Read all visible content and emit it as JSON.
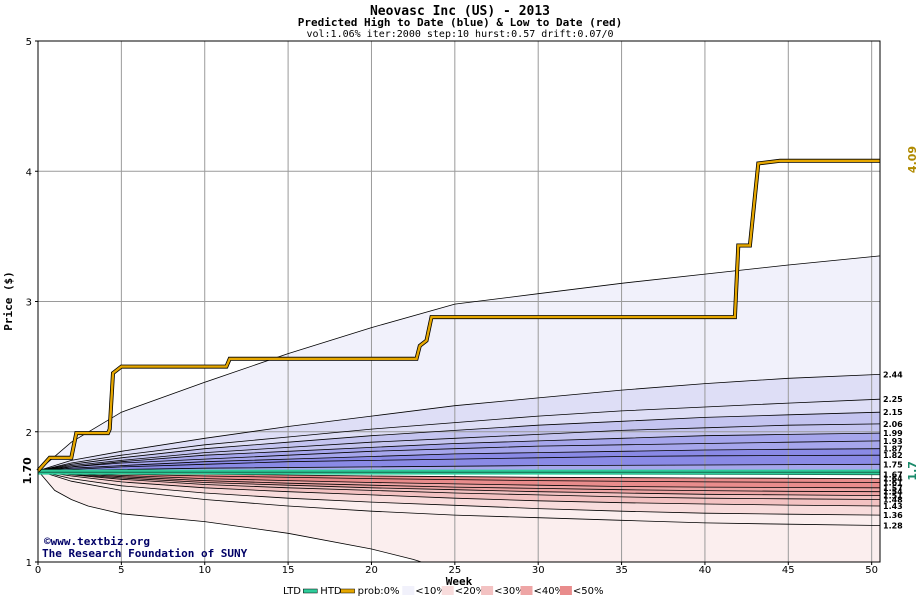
{
  "chart_data": {
    "type": "area",
    "title": "Neovasc Inc (US) - 2013",
    "subtitle": "Predicted High to Date (blue) &  Low to Date (red)",
    "params": "vol:1.06% iter:2000 step:10 hurst:0.57 drift:0.07/0",
    "xlabel": "Week",
    "ylabel": "Price ($)",
    "xlim": [
      0,
      50.5
    ],
    "ylim": [
      1,
      5
    ],
    "x_ticks": [
      "0",
      "5",
      "10",
      "15",
      "20",
      "25",
      "30",
      "35",
      "40",
      "45",
      "50"
    ],
    "y_ticks": [
      "1",
      "2",
      "3",
      "4",
      "5"
    ],
    "start_value": 1.7,
    "start_label": "1.70",
    "end_close_label": "1.7",
    "end_high_label": "4.09",
    "grid": true,
    "colors": {
      "fill_10": "#f1f1fb",
      "fill_20": "#dedef6",
      "fill_30": "#c4c4f0",
      "fill_40": "#a6a6ec",
      "fill_50": "#8a8ae6",
      "red_10": "#fbeeee",
      "red_20": "#f8dcdc",
      "red_30": "#f3c2c2",
      "red_40": "#eea5a5",
      "red_50": "#e98c8c",
      "htd_line": "#e6a700",
      "ltd_line": "#2ecc9a",
      "end_high_color": "#b08a00",
      "end_close_color": "#1a8a6a"
    },
    "high_quantiles": [
      {
        "label": "3.35",
        "show_label": false,
        "points": [
          [
            0,
            1.7
          ],
          [
            2,
            1.92
          ],
          [
            5,
            2.15
          ],
          [
            10,
            2.38
          ],
          [
            15,
            2.6
          ],
          [
            20,
            2.8
          ],
          [
            25,
            2.98
          ],
          [
            30,
            3.06
          ],
          [
            35,
            3.14
          ],
          [
            40,
            3.21
          ],
          [
            45,
            3.28
          ],
          [
            50.5,
            3.35
          ]
        ]
      },
      {
        "label": "2.44",
        "show_label": true,
        "points": [
          [
            0,
            1.7
          ],
          [
            2,
            1.78
          ],
          [
            5,
            1.85
          ],
          [
            10,
            1.95
          ],
          [
            15,
            2.04
          ],
          [
            20,
            2.12
          ],
          [
            25,
            2.2
          ],
          [
            30,
            2.26
          ],
          [
            35,
            2.32
          ],
          [
            40,
            2.37
          ],
          [
            45,
            2.41
          ],
          [
            50.5,
            2.44
          ]
        ]
      },
      {
        "label": "2.25",
        "show_label": true,
        "points": [
          [
            0,
            1.7
          ],
          [
            2,
            1.76
          ],
          [
            5,
            1.82
          ],
          [
            10,
            1.9
          ],
          [
            15,
            1.96
          ],
          [
            20,
            2.02
          ],
          [
            25,
            2.07
          ],
          [
            30,
            2.12
          ],
          [
            35,
            2.16
          ],
          [
            40,
            2.19
          ],
          [
            45,
            2.22
          ],
          [
            50.5,
            2.25
          ]
        ]
      },
      {
        "label": "2.15",
        "show_label": true,
        "points": [
          [
            0,
            1.7
          ],
          [
            2,
            1.75
          ],
          [
            5,
            1.8
          ],
          [
            10,
            1.87
          ],
          [
            15,
            1.92
          ],
          [
            20,
            1.97
          ],
          [
            25,
            2.01
          ],
          [
            30,
            2.05
          ],
          [
            35,
            2.08
          ],
          [
            40,
            2.11
          ],
          [
            45,
            2.13
          ],
          [
            50.5,
            2.15
          ]
        ]
      },
      {
        "label": "2.06",
        "show_label": true,
        "points": [
          [
            0,
            1.7
          ],
          [
            2,
            1.74
          ],
          [
            5,
            1.78
          ],
          [
            10,
            1.84
          ],
          [
            15,
            1.88
          ],
          [
            20,
            1.92
          ],
          [
            25,
            1.95
          ],
          [
            30,
            1.98
          ],
          [
            35,
            2.01
          ],
          [
            40,
            2.03
          ],
          [
            45,
            2.05
          ],
          [
            50.5,
            2.06
          ]
        ]
      },
      {
        "label": "1.99",
        "show_label": true,
        "points": [
          [
            0,
            1.7
          ],
          [
            2,
            1.73
          ],
          [
            5,
            1.77
          ],
          [
            10,
            1.82
          ],
          [
            15,
            1.85
          ],
          [
            20,
            1.88
          ],
          [
            25,
            1.91
          ],
          [
            30,
            1.93
          ],
          [
            35,
            1.95
          ],
          [
            40,
            1.97
          ],
          [
            45,
            1.98
          ],
          [
            50.5,
            1.99
          ]
        ]
      },
      {
        "label": "1.93",
        "show_label": true,
        "points": [
          [
            0,
            1.7
          ],
          [
            2,
            1.73
          ],
          [
            5,
            1.76
          ],
          [
            10,
            1.79
          ],
          [
            15,
            1.82
          ],
          [
            20,
            1.85
          ],
          [
            25,
            1.87
          ],
          [
            30,
            1.89
          ],
          [
            35,
            1.9
          ],
          [
            40,
            1.91
          ],
          [
            45,
            1.92
          ],
          [
            50.5,
            1.93
          ]
        ]
      },
      {
        "label": "1.87",
        "show_label": true,
        "points": [
          [
            0,
            1.7
          ],
          [
            2,
            1.72
          ],
          [
            5,
            1.74
          ],
          [
            10,
            1.77
          ],
          [
            15,
            1.79
          ],
          [
            20,
            1.81
          ],
          [
            25,
            1.83
          ],
          [
            30,
            1.84
          ],
          [
            35,
            1.85
          ],
          [
            40,
            1.86
          ],
          [
            45,
            1.865
          ],
          [
            50.5,
            1.87
          ]
        ]
      },
      {
        "label": "1.82",
        "show_label": true,
        "points": [
          [
            0,
            1.7
          ],
          [
            2,
            1.71
          ],
          [
            5,
            1.73
          ],
          [
            10,
            1.75
          ],
          [
            15,
            1.77
          ],
          [
            20,
            1.78
          ],
          [
            25,
            1.79
          ],
          [
            30,
            1.8
          ],
          [
            35,
            1.81
          ],
          [
            40,
            1.815
          ],
          [
            45,
            1.818
          ],
          [
            50.5,
            1.82
          ]
        ]
      },
      {
        "label": "1.75",
        "show_label": true,
        "points": [
          [
            0,
            1.7
          ],
          [
            5,
            1.71
          ],
          [
            10,
            1.72
          ],
          [
            20,
            1.73
          ],
          [
            30,
            1.74
          ],
          [
            40,
            1.745
          ],
          [
            50.5,
            1.75
          ]
        ]
      },
      {
        "label": "1.67",
        "show_label": true,
        "points": [
          [
            0,
            1.7
          ],
          [
            10,
            1.69
          ],
          [
            20,
            1.68
          ],
          [
            30,
            1.675
          ],
          [
            50.5,
            1.67
          ]
        ]
      }
    ],
    "low_quantiles": [
      {
        "label": "1.64",
        "show_label": true,
        "points": [
          [
            0,
            1.7
          ],
          [
            5,
            1.685
          ],
          [
            10,
            1.675
          ],
          [
            20,
            1.66
          ],
          [
            30,
            1.65
          ],
          [
            40,
            1.645
          ],
          [
            50.5,
            1.64
          ]
        ]
      },
      {
        "label": "1.61",
        "show_label": true,
        "points": [
          [
            0,
            1.7
          ],
          [
            2,
            1.69
          ],
          [
            5,
            1.675
          ],
          [
            10,
            1.66
          ],
          [
            20,
            1.64
          ],
          [
            30,
            1.625
          ],
          [
            40,
            1.615
          ],
          [
            50.5,
            1.61
          ]
        ]
      },
      {
        "label": "1.57",
        "show_label": true,
        "points": [
          [
            0,
            1.7
          ],
          [
            2,
            1.685
          ],
          [
            5,
            1.665
          ],
          [
            10,
            1.64
          ],
          [
            15,
            1.625
          ],
          [
            20,
            1.61
          ],
          [
            25,
            1.6
          ],
          [
            30,
            1.59
          ],
          [
            35,
            1.58
          ],
          [
            40,
            1.575
          ],
          [
            45,
            1.572
          ],
          [
            50.5,
            1.57
          ]
        ]
      },
      {
        "label": "1.54",
        "show_label": true,
        "points": [
          [
            0,
            1.7
          ],
          [
            2,
            1.68
          ],
          [
            5,
            1.655
          ],
          [
            10,
            1.625
          ],
          [
            15,
            1.605
          ],
          [
            20,
            1.59
          ],
          [
            25,
            1.575
          ],
          [
            30,
            1.565
          ],
          [
            35,
            1.555
          ],
          [
            40,
            1.548
          ],
          [
            45,
            1.543
          ],
          [
            50.5,
            1.54
          ]
        ]
      },
      {
        "label": "1.51",
        "show_label": true,
        "points": [
          [
            0,
            1.7
          ],
          [
            2,
            1.675
          ],
          [
            5,
            1.645
          ],
          [
            10,
            1.61
          ],
          [
            15,
            1.59
          ],
          [
            20,
            1.57
          ],
          [
            25,
            1.555
          ],
          [
            30,
            1.54
          ],
          [
            35,
            1.53
          ],
          [
            40,
            1.52
          ],
          [
            45,
            1.515
          ],
          [
            50.5,
            1.51
          ]
        ]
      },
      {
        "label": "1.48",
        "show_label": true,
        "points": [
          [
            0,
            1.7
          ],
          [
            2,
            1.67
          ],
          [
            5,
            1.635
          ],
          [
            10,
            1.595
          ],
          [
            15,
            1.57
          ],
          [
            20,
            1.55
          ],
          [
            25,
            1.53
          ],
          [
            30,
            1.515
          ],
          [
            35,
            1.5
          ],
          [
            40,
            1.49
          ],
          [
            45,
            1.485
          ],
          [
            50.5,
            1.48
          ]
        ]
      },
      {
        "label": "1.43",
        "show_label": true,
        "points": [
          [
            0,
            1.7
          ],
          [
            2,
            1.66
          ],
          [
            5,
            1.615
          ],
          [
            10,
            1.57
          ],
          [
            15,
            1.54
          ],
          [
            20,
            1.515
          ],
          [
            25,
            1.49
          ],
          [
            30,
            1.47
          ],
          [
            35,
            1.455
          ],
          [
            40,
            1.445
          ],
          [
            45,
            1.437
          ],
          [
            50.5,
            1.43
          ]
        ]
      },
      {
        "label": "1.36",
        "show_label": true,
        "points": [
          [
            0,
            1.7
          ],
          [
            2,
            1.64
          ],
          [
            5,
            1.585
          ],
          [
            10,
            1.53
          ],
          [
            15,
            1.49
          ],
          [
            20,
            1.46
          ],
          [
            25,
            1.435
          ],
          [
            30,
            1.41
          ],
          [
            35,
            1.39
          ],
          [
            40,
            1.375
          ],
          [
            45,
            1.367
          ],
          [
            50.5,
            1.36
          ]
        ]
      },
      {
        "label": "1.28",
        "show_label": true,
        "points": [
          [
            0,
            1.7
          ],
          [
            2,
            1.62
          ],
          [
            5,
            1.55
          ],
          [
            10,
            1.48
          ],
          [
            15,
            1.43
          ],
          [
            20,
            1.39
          ],
          [
            25,
            1.36
          ],
          [
            30,
            1.34
          ],
          [
            35,
            1.32
          ],
          [
            40,
            1.3
          ],
          [
            45,
            1.29
          ],
          [
            50.5,
            1.28
          ]
        ]
      },
      {
        "label": "1.0",
        "show_label": false,
        "points": [
          [
            0,
            1.7
          ],
          [
            1,
            1.55
          ],
          [
            2,
            1.48
          ],
          [
            3,
            1.43
          ],
          [
            4,
            1.4
          ],
          [
            5,
            1.37
          ],
          [
            10,
            1.31
          ],
          [
            15,
            1.22
          ],
          [
            20,
            1.1
          ],
          [
            22.5,
            1.02
          ],
          [
            23,
            1.0
          ],
          [
            50.5,
            1.0
          ]
        ]
      }
    ],
    "htd_path": [
      [
        0,
        1.7
      ],
      [
        0.7,
        1.8
      ],
      [
        2,
        1.8
      ],
      [
        2.3,
        1.99
      ],
      [
        4.2,
        1.99
      ],
      [
        4.3,
        2.02
      ],
      [
        4.5,
        2.45
      ],
      [
        5,
        2.5
      ],
      [
        11.3,
        2.5
      ],
      [
        11.5,
        2.56
      ],
      [
        22.7,
        2.56
      ],
      [
        22.9,
        2.66
      ],
      [
        23.3,
        2.7
      ],
      [
        23.6,
        2.88
      ],
      [
        41.8,
        2.88
      ],
      [
        42,
        3.43
      ],
      [
        42.7,
        3.43
      ],
      [
        43.2,
        4.06
      ],
      [
        44.5,
        4.08
      ],
      [
        50.5,
        4.08
      ]
    ],
    "ltd_value": 1.69,
    "end_labels_y": {
      "high": 4.09,
      "close": 1.7
    }
  },
  "credit": {
    "copyright": "©www.textbiz.org",
    "org": "The Research Foundation of SUNY"
  },
  "legend": {
    "ltd": "LTD",
    "htd": "HTD",
    "prob": "prob:0%",
    "p10": "<10%",
    "p20": "<20%",
    "p30": "<30%",
    "p40": "<40%",
    "p50": "<50%"
  }
}
